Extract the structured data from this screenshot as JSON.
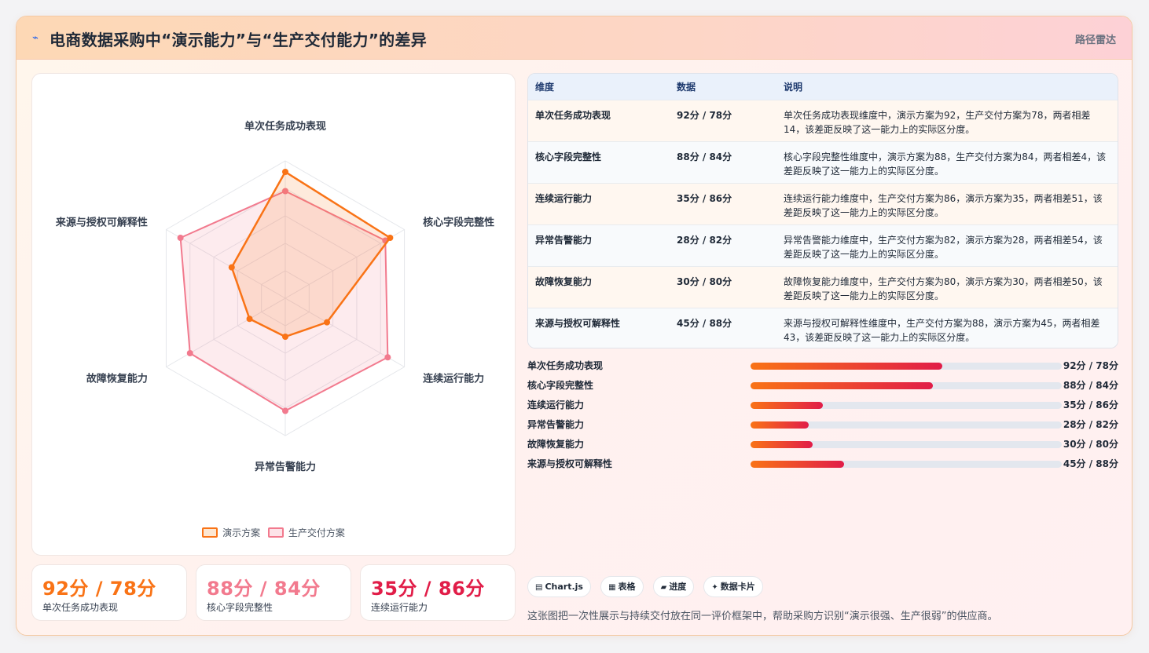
{
  "header": {
    "icon": "chart-line-icon",
    "title": "电商数据采购中“演示能力”与“生产交付能力”的差异",
    "tag": "路径雷达"
  },
  "chart_data": {
    "type": "radar",
    "categories": [
      "单次任务成功表现",
      "核心字段完整性",
      "连续运行能力",
      "异常告警能力",
      "故障恢复能力",
      "来源与授权可解释性"
    ],
    "series": [
      {
        "name": "演示方案",
        "values": [
          92,
          88,
          35,
          28,
          30,
          45
        ],
        "color": "#f97316"
      },
      {
        "name": "生产交付方案",
        "values": [
          78,
          84,
          86,
          82,
          80,
          88
        ],
        "color": "#f27a8e"
      }
    ],
    "range": [
      0,
      100
    ],
    "rings": 5,
    "legend_position": "bottom"
  },
  "kpis": [
    {
      "value": "92分 / 78分",
      "label": "单次任务成功表现",
      "color": "#f97316"
    },
    {
      "value": "88分 / 84分",
      "label": "核心字段完整性",
      "color": "#f27a8e"
    },
    {
      "value": "35分 / 86分",
      "label": "连续运行能力",
      "color": "#e11d48"
    }
  ],
  "table": {
    "headers": [
      "维度",
      "数据",
      "说明"
    ],
    "rows": [
      {
        "dim": "单次任务成功表现",
        "num": "92分 / 78分",
        "desc": "单次任务成功表现维度中，演示方案为92，生产交付方案为78，两者相差14，该差距反映了这一能力上的实际区分度。"
      },
      {
        "dim": "核心字段完整性",
        "num": "88分 / 84分",
        "desc": "核心字段完整性维度中，演示方案为88，生产交付方案为84，两者相差4，该差距反映了这一能力上的实际区分度。"
      },
      {
        "dim": "连续运行能力",
        "num": "35分 / 86分",
        "desc": "连续运行能力维度中，生产交付方案为86，演示方案为35，两者相差51，该差距反映了这一能力上的实际区分度。"
      },
      {
        "dim": "异常告警能力",
        "num": "28分 / 82分",
        "desc": "异常告警能力维度中，生产交付方案为82，演示方案为28，两者相差54，该差距反映了这一能力上的实际区分度。"
      },
      {
        "dim": "故障恢复能力",
        "num": "30分 / 80分",
        "desc": "故障恢复能力维度中，生产交付方案为80，演示方案为30，两者相差50，该差距反映了这一能力上的实际区分度。"
      },
      {
        "dim": "来源与授权可解释性",
        "num": "45分 / 88分",
        "desc": "来源与授权可解释性维度中，生产交付方案为88，演示方案为45，两者相差43，该差距反映了这一能力上的实际区分度。"
      }
    ]
  },
  "bars": [
    {
      "label": "单次任务成功表现",
      "value": "92分 / 78分",
      "fill": 0.615
    },
    {
      "label": "核心字段完整性",
      "value": "88分 / 84分",
      "fill": 0.587
    },
    {
      "label": "连续运行能力",
      "value": "35分 / 86分",
      "fill": 0.233
    },
    {
      "label": "异常告警能力",
      "value": "28分 / 82分",
      "fill": 0.187
    },
    {
      "label": "故障恢复能力",
      "value": "30分 / 80分",
      "fill": 0.2
    },
    {
      "label": "来源与授权可解释性",
      "value": "45分 / 88分",
      "fill": 0.3
    }
  ],
  "chips": [
    {
      "icon": "bar-chart-icon",
      "glyph": "▤",
      "label": "Chart.js"
    },
    {
      "icon": "table-icon",
      "glyph": "▦",
      "label": "表格"
    },
    {
      "icon": "progress-icon",
      "glyph": "▰",
      "label": "进度"
    },
    {
      "icon": "sparkle-icon",
      "glyph": "✦",
      "label": "数据卡片"
    }
  ],
  "footnote": "这张图把一次性展示与持续交付放在同一评价框架中，帮助采购方识别“演示很强、生产很弱”的供应商。"
}
